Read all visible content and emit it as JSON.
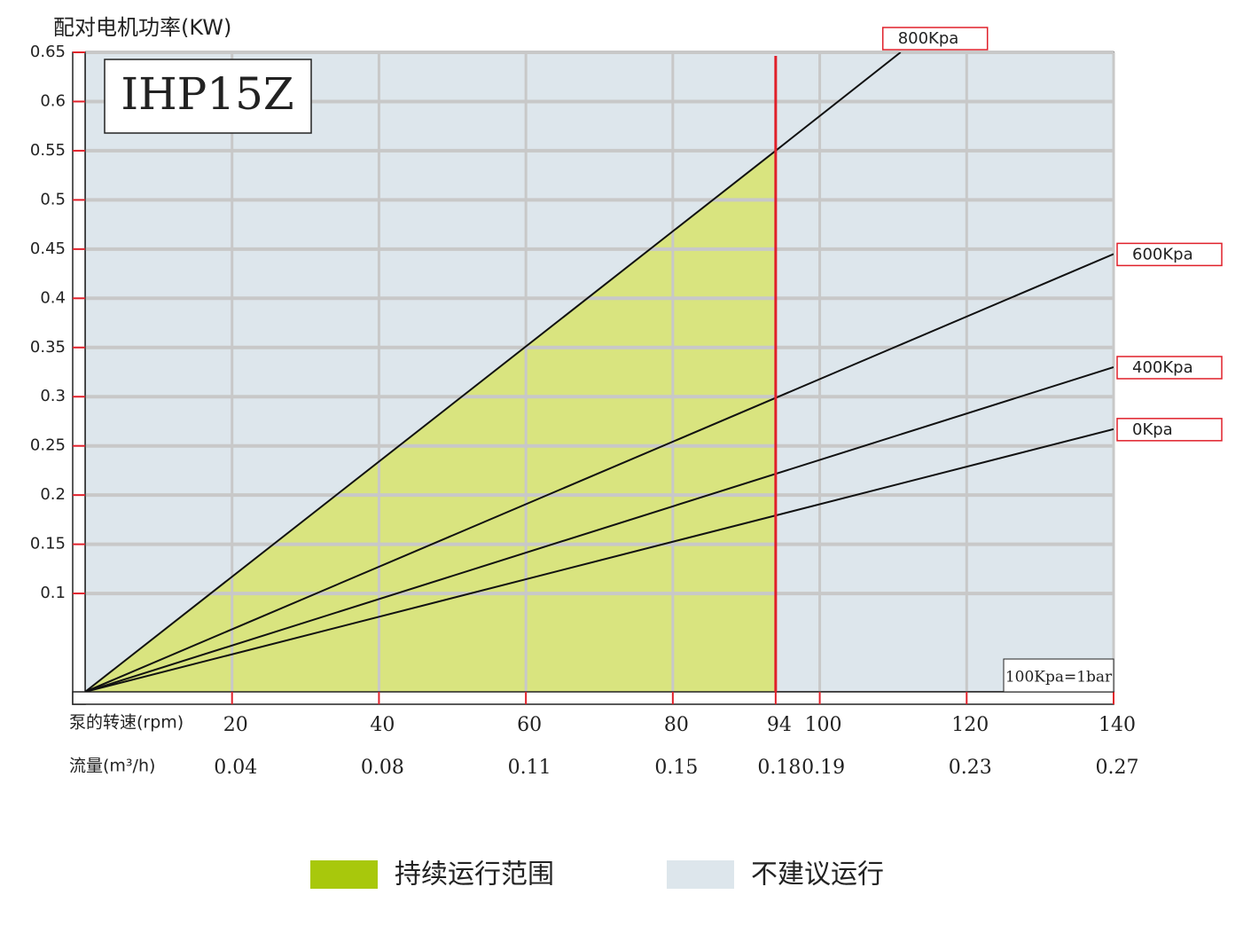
{
  "chart_data": {
    "type": "line",
    "title": "配对电机功率(KW)",
    "model": "IHP15Z",
    "x_label": "泵的转速(rpm)",
    "flow_label": "流量(m³/h)",
    "note": "100Kpa=1bar",
    "xlim": [
      0,
      140
    ],
    "ylim": [
      0,
      0.65
    ],
    "xticks": [
      20,
      40,
      60,
      80,
      94,
      100,
      120,
      140
    ],
    "flow_ticks": [
      "0.04",
      "0.08",
      "0.11",
      "0.15",
      "0.18",
      "0.19",
      "0.23",
      "0.27"
    ],
    "yticks": [
      0.1,
      0.15,
      0.2,
      0.25,
      0.3,
      0.35,
      0.4,
      0.45,
      0.5,
      0.55,
      0.6,
      0.65
    ],
    "grid": true,
    "limit_rpm": 94,
    "fill_color": "#d9e47f",
    "background_color": "#dde6ec",
    "series": [
      {
        "name": "800Kpa",
        "color": "#111111",
        "x": [
          0,
          94,
          111
        ],
        "values": [
          0,
          0.55,
          0.65
        ]
      },
      {
        "name": "600Kpa",
        "color": "#111111",
        "x": [
          0,
          140
        ],
        "values": [
          0,
          0.445
        ]
      },
      {
        "name": "400Kpa",
        "color": "#111111",
        "x": [
          0,
          140
        ],
        "values": [
          0,
          0.33
        ]
      },
      {
        "name": "0Kpa",
        "color": "#111111",
        "x": [
          0,
          140
        ],
        "values": [
          0,
          0.267
        ]
      }
    ],
    "legend": [
      {
        "name": "持续运行范围",
        "color": "#a8c80c"
      },
      {
        "name": "不建议运行",
        "color": "#dde6ec"
      }
    ]
  }
}
